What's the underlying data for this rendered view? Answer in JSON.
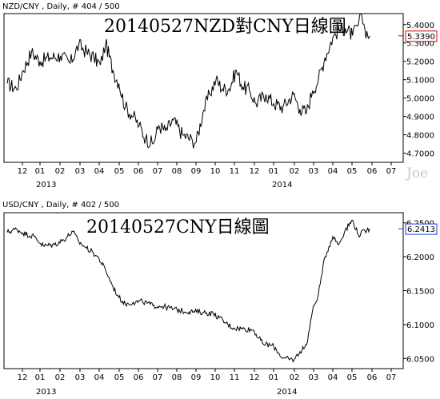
{
  "charts": [
    {
      "header": "NZD/CNY , Daily, # 404 / 500",
      "title": "20140527NZD對CNY日線圖",
      "last_value_label": "5.3390",
      "last_value_color": "#e00000"
    },
    {
      "header": "USD/CNY , Daily, # 402 / 500",
      "title": "20140527CNY日線圖",
      "last_value_label": "6.2413",
      "last_value_color": "#1f3fd0"
    }
  ],
  "watermark": "Joe",
  "chart_data": [
    {
      "type": "line",
      "title": "20140527NZD對CNY日線圖",
      "series": [
        {
          "name": "NZD/CNY",
          "x": [
            "2012-11-21",
            "2012-12-05",
            "2012-12-15",
            "2012-12-28",
            "2013-01-10",
            "2013-01-25",
            "2013-02-10",
            "2013-02-25",
            "2013-03-10",
            "2013-03-22",
            "2013-04-02",
            "2013-04-12",
            "2013-04-20",
            "2013-05-01",
            "2013-05-10",
            "2013-05-20",
            "2013-06-01",
            "2013-06-10",
            "2013-06-20",
            "2013-07-01",
            "2013-07-10",
            "2013-07-20",
            "2013-08-01",
            "2013-08-15",
            "2013-08-30",
            "2013-09-05",
            "2013-09-15",
            "2013-09-25",
            "2013-10-05",
            "2013-10-15",
            "2013-10-25",
            "2013-11-05",
            "2013-11-15",
            "2013-11-25",
            "2013-12-05",
            "2013-12-20",
            "2014-01-01",
            "2014-01-15",
            "2014-01-31",
            "2014-02-10",
            "2014-02-20",
            "2014-03-01",
            "2014-03-10",
            "2014-03-20",
            "2014-04-01",
            "2014-04-10",
            "2014-04-20",
            "2014-05-01",
            "2014-05-10",
            "2014-05-15",
            "2014-05-20",
            "2014-05-27"
          ],
          "values": [
            5.08,
            5.05,
            5.15,
            5.25,
            5.2,
            5.22,
            5.23,
            5.19,
            5.29,
            5.25,
            5.22,
            5.18,
            5.3,
            5.15,
            5.08,
            4.95,
            4.9,
            4.85,
            4.78,
            4.75,
            4.85,
            4.82,
            4.88,
            4.8,
            4.77,
            4.76,
            4.92,
            5.02,
            5.1,
            5.05,
            5.05,
            5.15,
            5.06,
            5.04,
            4.97,
            5.02,
            4.97,
            4.95,
            5.02,
            4.94,
            4.92,
            5.04,
            5.1,
            5.22,
            5.33,
            5.37,
            5.38,
            5.34,
            5.4,
            5.45,
            5.37,
            5.339
          ]
        }
      ],
      "ylim": [
        4.65,
        5.46
      ],
      "y_ticks": [
        4.7,
        4.8,
        4.9,
        5.0,
        5.1,
        5.2,
        5.3,
        5.4
      ],
      "x_tick_labels": [
        "12",
        "01",
        "02",
        "03",
        "04",
        "05",
        "06",
        "07",
        "08",
        "09",
        "10",
        "11",
        "12",
        "01",
        "02",
        "03",
        "04",
        "05",
        "06",
        "07"
      ],
      "year_labels": [
        "2013",
        "2014"
      ],
      "last_value": 5.339
    },
    {
      "type": "line",
      "title": "20140527CNY日線圖",
      "series": [
        {
          "name": "USD/CNY",
          "x": [
            "2012-11-21",
            "2012-12-05",
            "2012-12-15",
            "2013-01-01",
            "2013-01-15",
            "2013-02-01",
            "2013-02-15",
            "2013-03-01",
            "2013-03-10",
            "2013-03-20",
            "2013-04-01",
            "2013-04-10",
            "2013-04-20",
            "2013-05-01",
            "2013-05-10",
            "2013-05-20",
            "2013-06-01",
            "2013-06-15",
            "2013-07-01",
            "2013-07-15",
            "2013-08-01",
            "2013-08-15",
            "2013-09-01",
            "2013-09-15",
            "2013-10-01",
            "2013-10-10",
            "2013-10-20",
            "2013-11-01",
            "2013-11-15",
            "2013-12-01",
            "2013-12-15",
            "2014-01-01",
            "2014-01-15",
            "2014-02-01",
            "2014-02-10",
            "2014-02-20",
            "2014-03-01",
            "2014-03-10",
            "2014-03-20",
            "2014-04-01",
            "2014-04-10",
            "2014-04-20",
            "2014-05-01",
            "2014-05-10",
            "2014-05-20",
            "2014-05-27"
          ],
          "values": [
            6.236,
            6.241,
            6.235,
            6.23,
            6.216,
            6.218,
            6.225,
            6.237,
            6.222,
            6.214,
            6.206,
            6.197,
            6.18,
            6.156,
            6.14,
            6.13,
            6.133,
            6.134,
            6.128,
            6.127,
            6.123,
            6.12,
            6.119,
            6.118,
            6.116,
            6.11,
            6.102,
            6.095,
            6.094,
            6.092,
            6.072,
            6.068,
            6.05,
            6.048,
            6.06,
            6.07,
            6.12,
            6.145,
            6.2,
            6.23,
            6.218,
            6.24,
            6.254,
            6.232,
            6.238,
            6.2413
          ]
        }
      ],
      "ylim": [
        6.035,
        6.265
      ],
      "y_ticks": [
        6.05,
        6.1,
        6.15,
        6.2,
        6.25
      ],
      "x_tick_labels": [
        "12",
        "01",
        "02",
        "03",
        "04",
        "05",
        "06",
        "07",
        "08",
        "09",
        "10",
        "11",
        "12",
        "01",
        "02",
        "03",
        "04",
        "05",
        "06",
        "07"
      ],
      "year_labels": [
        "2013",
        "2014"
      ],
      "last_value": 6.2413
    }
  ]
}
